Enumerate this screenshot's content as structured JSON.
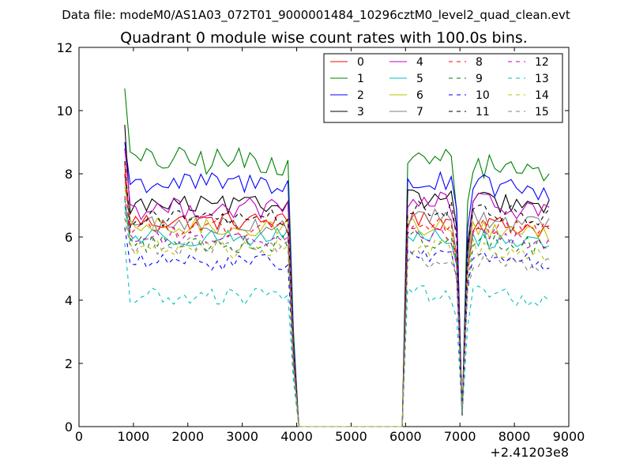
{
  "header": {
    "filename": "Data file: modeM0/AS1A03_072T01_9000001484_10296cztM0_level2_quad_clean.evt"
  },
  "chart_data": {
    "type": "line",
    "title": "Quadrant 0 module wise count rates with 100.0s bins.",
    "xlabel": "",
    "ylabel": "",
    "x_offset_label": "+2.41203e8",
    "xlim": [
      0,
      9000
    ],
    "ylim": [
      0,
      12
    ],
    "x_ticks": [
      0,
      1000,
      2000,
      3000,
      4000,
      5000,
      6000,
      7000,
      8000,
      9000
    ],
    "y_ticks": [
      0,
      2,
      4,
      6,
      8,
      10,
      12
    ],
    "x_tick_labels": [
      "0",
      "1000",
      "2000",
      "3000",
      "4000",
      "5000",
      "6000",
      "7000",
      "8000",
      "9000"
    ],
    "y_tick_labels": [
      "0",
      "2",
      "4",
      "6",
      "8",
      "10",
      "12"
    ],
    "grid": false,
    "legend": {
      "placement": "top-right",
      "columns": 4
    },
    "gaps": {
      "zero_start": 3960,
      "zero_end": 6040,
      "drop_start": 3860,
      "dip_center": 7030,
      "first_x": 840,
      "last_x": 8640,
      "step": 100
    },
    "series": [
      {
        "name": "0",
        "color": "#ff0000",
        "style": "solid",
        "first": 8.3,
        "seg1": 6.5,
        "seg2": 6.5,
        "amp": 0.3
      },
      {
        "name": "1",
        "color": "#008000",
        "style": "solid",
        "first": 10.7,
        "seg1": 8.4,
        "seg2": 8.4,
        "amp": 0.45
      },
      {
        "name": "2",
        "color": "#0000ff",
        "style": "solid",
        "first": 9.0,
        "seg1": 7.7,
        "seg2": 7.7,
        "amp": 0.35
      },
      {
        "name": "3",
        "color": "#000000",
        "style": "solid",
        "first": 9.55,
        "seg1": 7.0,
        "seg2": 7.2,
        "amp": 0.3
      },
      {
        "name": "4",
        "color": "#bf00bf",
        "style": "solid",
        "first": 8.8,
        "seg1": 6.9,
        "seg2": 7.1,
        "amp": 0.35
      },
      {
        "name": "5",
        "color": "#00bfbf",
        "style": "solid",
        "first": 7.0,
        "seg1": 6.0,
        "seg2": 6.0,
        "amp": 0.3
      },
      {
        "name": "6",
        "color": "#bfbf00",
        "style": "solid",
        "first": 7.6,
        "seg1": 6.3,
        "seg2": 6.3,
        "amp": 0.3
      },
      {
        "name": "7",
        "color": "#808080",
        "style": "solid",
        "first": 7.9,
        "seg1": 6.4,
        "seg2": 6.6,
        "amp": 0.3
      },
      {
        "name": "8",
        "color": "#ff0000",
        "style": "dashed",
        "first": 8.0,
        "seg1": 6.3,
        "seg2": 6.4,
        "amp": 0.3
      },
      {
        "name": "9",
        "color": "#008000",
        "style": "dashed",
        "first": 7.2,
        "seg1": 5.8,
        "seg2": 5.9,
        "amp": 0.3
      },
      {
        "name": "10",
        "color": "#0000ff",
        "style": "dashed",
        "first": 6.3,
        "seg1": 5.2,
        "seg2": 5.4,
        "amp": 0.25
      },
      {
        "name": "11",
        "color": "#000000",
        "style": "dashed",
        "first": 8.4,
        "seg1": 6.6,
        "seg2": 6.9,
        "amp": 0.3
      },
      {
        "name": "12",
        "color": "#bf00bf",
        "style": "dashed",
        "first": 7.3,
        "seg1": 6.0,
        "seg2": 6.1,
        "amp": 0.3
      },
      {
        "name": "13",
        "color": "#00bfbf",
        "style": "dashed",
        "first": 5.8,
        "seg1": 4.1,
        "seg2": 4.2,
        "amp": 0.3
      },
      {
        "name": "14",
        "color": "#bfbf00",
        "style": "dashed",
        "first": 6.8,
        "seg1": 5.6,
        "seg2": 5.7,
        "amp": 0.3
      },
      {
        "name": "15",
        "color": "#808080",
        "style": "dashed",
        "first": 6.6,
        "seg1": 5.7,
        "seg2": 5.3,
        "amp": 0.3
      }
    ]
  }
}
